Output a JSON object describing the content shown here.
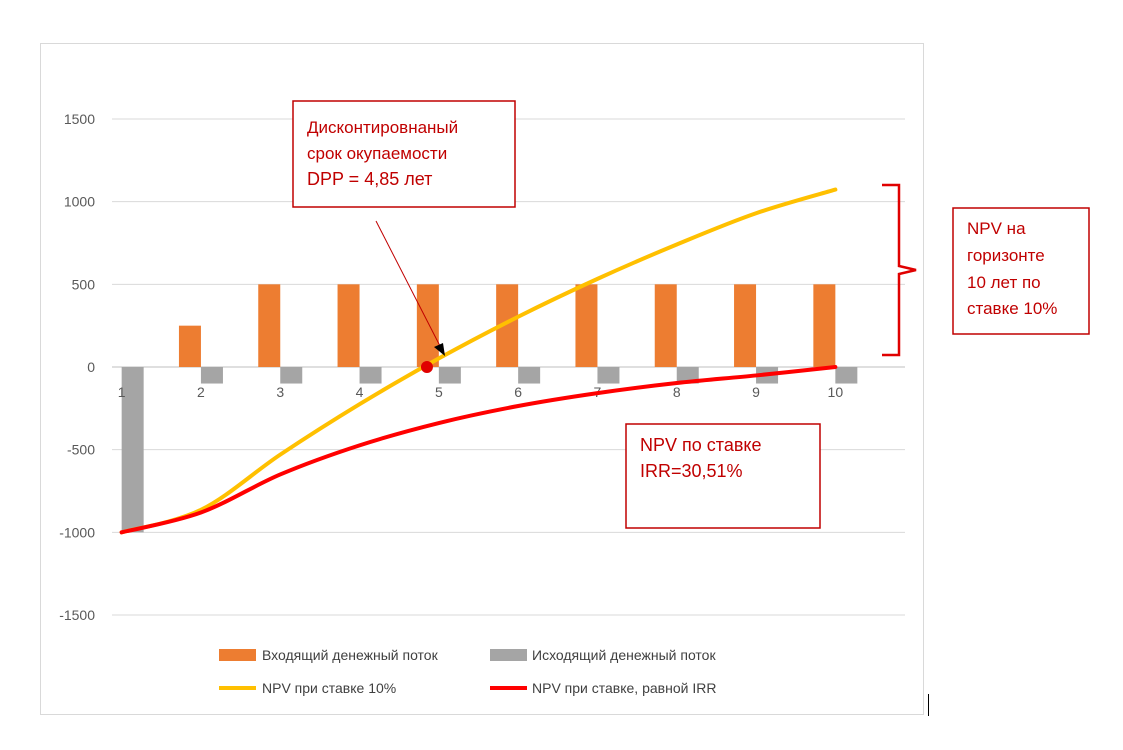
{
  "chart_data": {
    "type": "bar",
    "title": "",
    "xlabel": "",
    "ylabel": "",
    "categories": [
      "1",
      "2",
      "3",
      "4",
      "5",
      "6",
      "7",
      "8",
      "9",
      "10"
    ],
    "ylim": [
      -1500,
      1500
    ],
    "yticks": [
      1500,
      1000,
      500,
      0,
      -500,
      -1000,
      -1500
    ],
    "grid": true,
    "legend_position": "bottom",
    "series": [
      {
        "name": "Входящий денежный поток",
        "kind": "bar",
        "color": "#ed7d31",
        "values": [
          0,
          250,
          500,
          500,
          500,
          500,
          500,
          500,
          500,
          500
        ]
      },
      {
        "name": "Исходящий денежный поток",
        "kind": "bar",
        "color": "#a5a5a5",
        "values": [
          -1000,
          -100,
          -100,
          -100,
          -100,
          -100,
          -100,
          -100,
          -100,
          -100
        ]
      },
      {
        "name": "NPV при ставке 10%",
        "kind": "line",
        "color": "#ffc000",
        "values": [
          -1000,
          -864,
          -530,
          -225,
          52,
          304,
          533,
          741,
          930,
          1073
        ]
      },
      {
        "name": "NPV при ставке, равной IRR",
        "kind": "line",
        "color": "#ff0000",
        "values": [
          -1000,
          -880,
          -650,
          -474,
          -339,
          -236,
          -158,
          -97,
          -51,
          0
        ]
      }
    ],
    "annotations": [
      {
        "lines": [
          "Дисконтировнаный",
          "срок окупаемости",
          "DPP = 4,85 лет"
        ],
        "point": {
          "x": 4.85,
          "y": 0
        }
      },
      {
        "lines": [
          "NPV по ставке",
          "IRR=30,51%"
        ]
      },
      {
        "lines": [
          "NPV на",
          "горизонте",
          "10 лет по",
          "ставке 10%"
        ]
      }
    ]
  },
  "colors": {
    "callout_border": "#c00000",
    "callout_text": "#c00000",
    "marker": "#e00000",
    "grid": "#d9d9d9",
    "axis": "#bfbfbf"
  }
}
